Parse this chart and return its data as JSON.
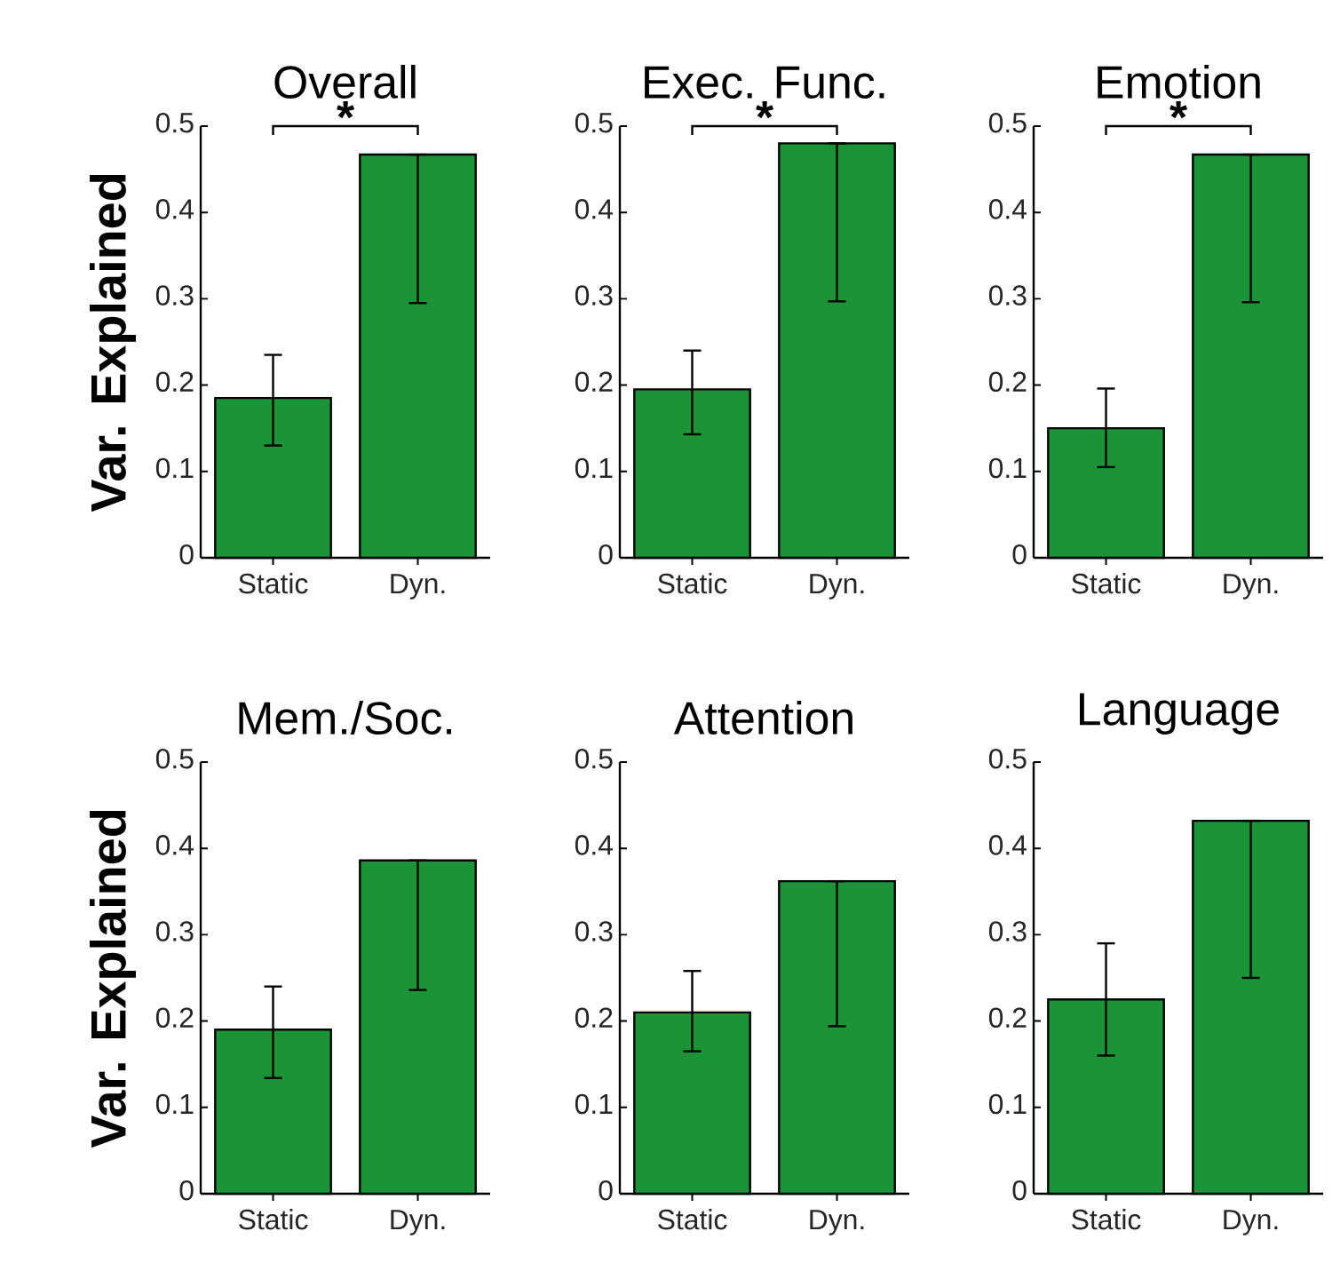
{
  "chart_data": [
    {
      "type": "bar",
      "title": "Overall",
      "ylabel": "Var. Explained",
      "categories": [
        "Static",
        "Dyn."
      ],
      "values": [
        0.185,
        0.467
      ],
      "errors": [
        [
          0.13,
          0.235
        ],
        [
          0.295,
          0.467
        ]
      ],
      "color": "#1a9436",
      "ylim": [
        0,
        0.5
      ],
      "yticks": [
        0,
        0.1,
        0.2,
        0.3,
        0.4,
        0.5
      ],
      "annotations": [
        "*"
      ]
    },
    {
      "type": "bar",
      "title": "Exec. Func.",
      "categories": [
        "Static",
        "Dyn."
      ],
      "values": [
        0.195,
        0.48
      ],
      "errors": [
        [
          0.143,
          0.24
        ],
        [
          0.297,
          0.48
        ]
      ],
      "color": "#1a9436",
      "ylim": [
        0,
        0.5
      ],
      "yticks": [
        0,
        0.1,
        0.2,
        0.3,
        0.4,
        0.5
      ],
      "annotations": [
        "*"
      ]
    },
    {
      "type": "bar",
      "title": "Emotion",
      "categories": [
        "Static",
        "Dyn."
      ],
      "values": [
        0.15,
        0.467
      ],
      "errors": [
        [
          0.105,
          0.196
        ],
        [
          0.296,
          0.467
        ]
      ],
      "color": "#1a9436",
      "ylim": [
        0,
        0.5
      ],
      "yticks": [
        0,
        0.1,
        0.2,
        0.3,
        0.4,
        0.5
      ],
      "annotations": [
        "*"
      ]
    },
    {
      "type": "bar",
      "title": "Mem./Soc.",
      "ylabel": "Var. Explained",
      "categories": [
        "Static",
        "Dyn."
      ],
      "values": [
        0.19,
        0.386
      ],
      "errors": [
        [
          0.134,
          0.24
        ],
        [
          0.236,
          0.386
        ]
      ],
      "color": "#1a9436",
      "ylim": [
        0,
        0.5
      ],
      "yticks": [
        0,
        0.1,
        0.2,
        0.3,
        0.4,
        0.5
      ]
    },
    {
      "type": "bar",
      "title": "Attention",
      "categories": [
        "Static",
        "Dyn."
      ],
      "values": [
        0.21,
        0.362
      ],
      "errors": [
        [
          0.165,
          0.258
        ],
        [
          0.194,
          0.362
        ]
      ],
      "color": "#1a9436",
      "ylim": [
        0,
        0.5
      ],
      "yticks": [
        0,
        0.1,
        0.2,
        0.3,
        0.4,
        0.5
      ]
    },
    {
      "type": "bar",
      "title": "Language",
      "categories": [
        "Static",
        "Dyn."
      ],
      "values": [
        0.225,
        0.432
      ],
      "errors": [
        [
          0.16,
          0.29
        ],
        [
          0.25,
          0.432
        ]
      ],
      "color": "#1a9436",
      "ylim": [
        0,
        0.5
      ],
      "yticks": [
        0,
        0.1,
        0.2,
        0.3,
        0.4,
        0.5
      ]
    }
  ]
}
